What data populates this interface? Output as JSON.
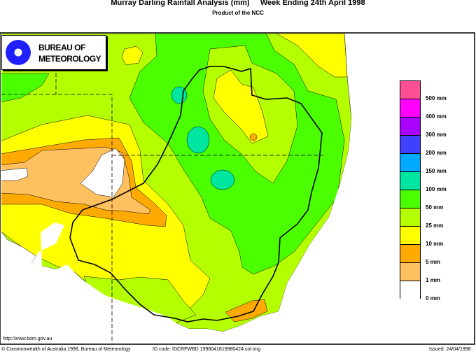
{
  "header": {
    "title": "Murray Darling Rainfall Analysis (mm)     Week Ending 24th April 1998",
    "subtitle": "Product of the NCC"
  },
  "logo": {
    "text_line1": "BUREAU OF",
    "text_line2": "METEOROLOGY"
  },
  "legend": {
    "items": [
      {
        "label": "500 mm",
        "color": "#ff5096"
      },
      {
        "label": "400 mm",
        "color": "#ff00ff"
      },
      {
        "label": "300 mm",
        "color": "#aa00ff"
      },
      {
        "label": "200 mm",
        "color": "#4040ff"
      },
      {
        "label": "150 mm",
        "color": "#00aaff"
      },
      {
        "label": "100 mm",
        "color": "#00e6a0"
      },
      {
        "label": "50 mm",
        "color": "#4cff00"
      },
      {
        "label": "25 mm",
        "color": "#b4ff00"
      },
      {
        "label": "10 mm",
        "color": "#ffff00"
      },
      {
        "label": "5 mm",
        "color": "#ffaa00"
      },
      {
        "label": "1 mm",
        "color": "#ffc060"
      },
      {
        "label": "0 mm",
        "color": "#ffffff"
      }
    ]
  },
  "footer": {
    "url": "http://www.bom.gov.au",
    "copyright": "© Commonwealth of Australia 1998, Bureau of Meteorology",
    "id_code": "ID code: IDCRFWBD 1998041819980424.col.img",
    "issued": "Issued: 24/04/1998"
  }
}
